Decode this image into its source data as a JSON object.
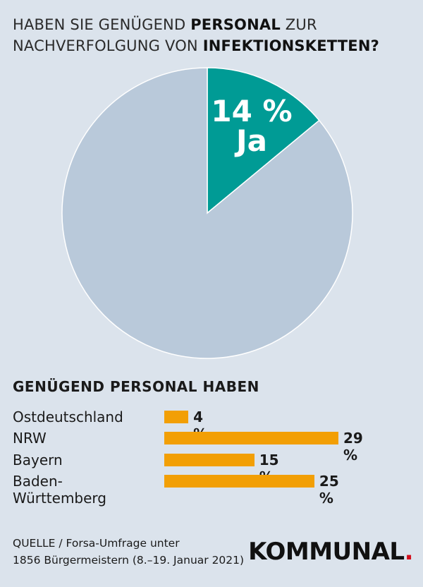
{
  "title": {
    "part1": "HABEN SIE GENÜGEND ",
    "bold1": "PERSONAL",
    "part2": " ZUR NACHVERFOLGUNG VON ",
    "bold2": "INFEKTIONSKETTEN?"
  },
  "colors": {
    "ja": "#009b95",
    "rest": "#b9c9da",
    "bar": "#f29f05",
    "background": "#dbe3ec",
    "logo_dot": "#d40f1c"
  },
  "chart_data": [
    {
      "type": "pie",
      "slices": [
        {
          "label": "Ja",
          "value": 14
        },
        {
          "value": 86
        }
      ],
      "data_label_value": "14 %",
      "data_label_name": "Ja"
    },
    {
      "type": "bar",
      "title": "GENÜGEND PERSONAL HABEN",
      "categories": [
        "Ostdeutschland",
        "NRW",
        "Bayern",
        "Baden-Württemberg"
      ],
      "values": [
        4,
        29,
        15,
        25
      ],
      "value_labels": [
        "4 %",
        "29 %",
        "15 %",
        "25 %"
      ],
      "xlim": [
        0,
        29
      ]
    }
  ],
  "source": {
    "line1": "QUELLE / Forsa-Umfrage unter",
    "line2": "1856 Bürgermeistern (8.–19. Januar 2021)"
  },
  "logo": {
    "text": "KOMMUNAL",
    "dot": "."
  }
}
